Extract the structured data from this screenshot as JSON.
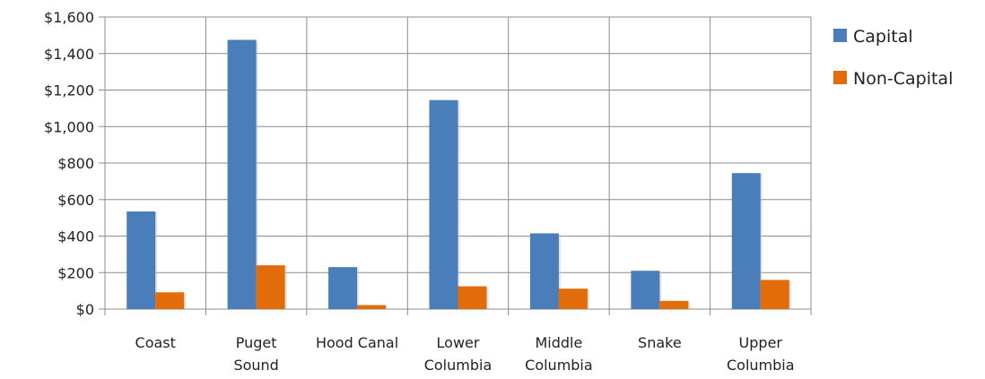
{
  "chart_data": {
    "type": "bar",
    "categories": [
      [
        "Coast"
      ],
      [
        "Puget",
        "Sound"
      ],
      [
        "Hood Canal"
      ],
      [
        "Lower",
        "Columbia"
      ],
      [
        "Middle",
        "Columbia"
      ],
      [
        "Snake"
      ],
      [
        "Upper",
        "Columbia"
      ]
    ],
    "series": [
      {
        "name": "Capital",
        "color": "#4a7ebb",
        "values": [
          535,
          1475,
          230,
          1145,
          415,
          210,
          745
        ]
      },
      {
        "name": "Non-Capital",
        "color": "#e36c0a",
        "values": [
          92,
          240,
          22,
          125,
          112,
          45,
          160
        ]
      }
    ],
    "yticks": [
      "$0",
      "$200",
      "$400",
      "$600",
      "$800",
      "$1,000",
      "$1,200",
      "$1,400",
      "$1,600"
    ],
    "ylim": [
      0,
      1600
    ],
    "ystep": 200,
    "grid": true,
    "legend": "right"
  }
}
